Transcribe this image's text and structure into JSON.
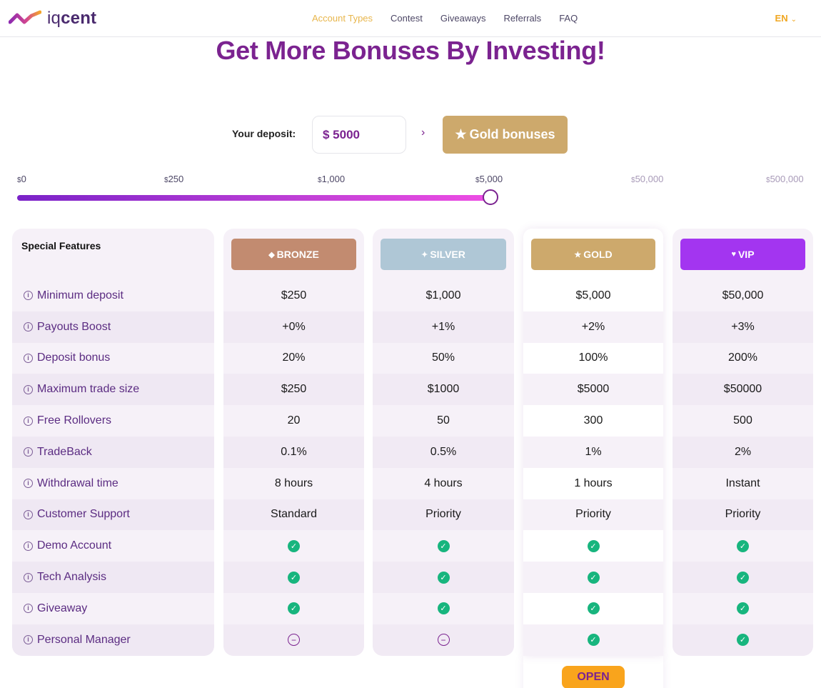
{
  "header": {
    "logo": {
      "prefix": "iq",
      "suffix": "cent"
    },
    "nav": [
      "Account Types",
      "Contest",
      "Giveaways",
      "Referrals",
      "FAQ"
    ],
    "language": "EN"
  },
  "title": "Get More Bonuses By Investing!",
  "deposit": {
    "label": "Your deposit:",
    "value": "$ 5000",
    "arrow": "›",
    "tier_button": "Gold bonuses"
  },
  "slider": {
    "ticks": [
      "0",
      "250",
      "1,000",
      "5,000",
      "50,000",
      "500,000"
    ],
    "currency_symbol": "$",
    "selected_tick_index": 3
  },
  "table": {
    "features_title": "Special Features",
    "features": [
      "Minimum deposit",
      "Payouts Boost",
      "Deposit bonus",
      "Maximum trade size",
      "Free Rollovers",
      "TradeBack",
      "Withdrawal time",
      "Customer Support",
      "Demo Account",
      "Tech Analysis",
      "Giveaway",
      "Personal Manager"
    ],
    "tiers": [
      {
        "name": "BRONZE",
        "symbol": "◆",
        "color": "#c28b70",
        "values": [
          "$250",
          "+0%",
          "20%",
          "$250",
          "20",
          "0.1%",
          "8 hours",
          "Standard",
          "check",
          "check",
          "check",
          "minus"
        ]
      },
      {
        "name": "SILVER",
        "symbol": "✦",
        "color": "#afc7d6",
        "values": [
          "$1,000",
          "+1%",
          "50%",
          "$1000",
          "50",
          "0.5%",
          "4 hours",
          "Priority",
          "check",
          "check",
          "check",
          "minus"
        ]
      },
      {
        "name": "GOLD",
        "symbol": "★",
        "color": "#cda96c",
        "values": [
          "$5,000",
          "+2%",
          "100%",
          "$5000",
          "300",
          "1%",
          "1 hours",
          "Priority",
          "check",
          "check",
          "check",
          "check"
        ]
      },
      {
        "name": "VIP",
        "symbol": "♥",
        "color": "#a335f0",
        "values": [
          "$50,000",
          "+3%",
          "200%",
          "$50000",
          "500",
          "2%",
          "Instant",
          "Priority",
          "check",
          "check",
          "check",
          "check"
        ]
      }
    ],
    "open_button": "OPEN"
  }
}
